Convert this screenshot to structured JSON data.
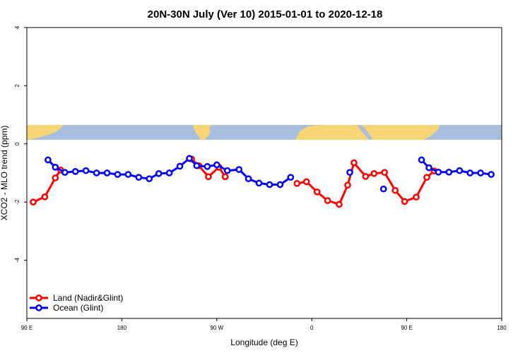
{
  "chart_data": {
    "type": "line",
    "title": "20N-30N July (Ver 10)   2015-01-01 to 2020-12-18",
    "xlabel": "Longitude (deg E)",
    "ylabel": "XCO2 - MLO trend (ppm)",
    "xlim": [
      90,
      540
    ],
    "ylim": [
      -6,
      4
    ],
    "xticks": [
      {
        "value": 90,
        "label": "90 E"
      },
      {
        "value": 180,
        "label": "180"
      },
      {
        "value": 270,
        "label": "90 W"
      },
      {
        "value": 360,
        "label": "0"
      },
      {
        "value": 450,
        "label": "90 E"
      },
      {
        "value": 540,
        "label": "180"
      }
    ],
    "yticks": [
      {
        "value": 4,
        "label": "4"
      },
      {
        "value": 2,
        "label": "2"
      },
      {
        "value": 0,
        "label": "0"
      },
      {
        "value": -2,
        "label": "-2"
      },
      {
        "value": -4,
        "label": "-4"
      }
    ],
    "grid": false,
    "legend_position": "bottom-left",
    "map_strip": {
      "y_range": [
        0.15,
        0.65
      ],
      "ocean_color": "#a7bedf",
      "land_color": "#f8d676"
    },
    "series": [
      {
        "name": "Land (Nadir&Glint)",
        "color": "#ff0000",
        "segments": [
          [
            [
              96,
              -2.0
            ],
            [
              107,
              -1.82
            ],
            [
              117,
              -1.17
            ],
            [
              122,
              -0.9
            ]
          ],
          [
            [
              246,
              -0.52
            ],
            [
              253,
              -0.75
            ],
            [
              262,
              -1.13
            ],
            [
              272,
              -0.8
            ],
            [
              278,
              -1.13
            ]
          ],
          [
            [
              346,
              -1.36
            ],
            [
              355,
              -1.3
            ],
            [
              365,
              -1.65
            ],
            [
              375,
              -1.95
            ],
            [
              386,
              -2.08
            ],
            [
              394,
              -1.42
            ],
            [
              400,
              -0.65
            ],
            [
              411,
              -1.12
            ],
            [
              419,
              -1.02
            ],
            [
              429,
              -0.98
            ],
            [
              439,
              -1.6
            ],
            [
              448,
              -1.98
            ],
            [
              459,
              -1.83
            ],
            [
              469,
              -1.15
            ],
            [
              476,
              -0.93
            ]
          ]
        ]
      },
      {
        "name": "Ocean (Glint)",
        "color": "#0000ff",
        "segments": [
          [
            [
              110,
              -0.55
            ],
            [
              117,
              -0.8
            ],
            [
              126,
              -0.98
            ],
            [
              136,
              -0.95
            ],
            [
              146,
              -0.92
            ],
            [
              156,
              -1.0
            ],
            [
              166,
              -1.0
            ],
            [
              176,
              -1.05
            ],
            [
              186,
              -1.05
            ],
            [
              196,
              -1.15
            ],
            [
              206,
              -1.2
            ],
            [
              215,
              -1.02
            ],
            [
              225,
              -1.0
            ],
            [
              235,
              -0.77
            ],
            [
              244,
              -0.5
            ],
            [
              251,
              -0.75
            ],
            [
              261,
              -0.78
            ],
            [
              270,
              -0.72
            ],
            [
              280,
              -0.92
            ],
            [
              291,
              -0.88
            ],
            [
              300,
              -1.2
            ],
            [
              310,
              -1.35
            ],
            [
              320,
              -1.4
            ],
            [
              330,
              -1.4
            ],
            [
              340,
              -1.15
            ]
          ],
          [
            [
              396,
              -0.98
            ]
          ],
          [
            [
              428,
              -1.55
            ]
          ],
          [
            [
              464,
              -0.55
            ],
            [
              471,
              -0.82
            ],
            [
              480,
              -0.97
            ],
            [
              490,
              -0.97
            ],
            [
              500,
              -0.92
            ],
            [
              510,
              -1.0
            ],
            [
              520,
              -1.0
            ],
            [
              530,
              -1.05
            ]
          ]
        ]
      }
    ]
  }
}
